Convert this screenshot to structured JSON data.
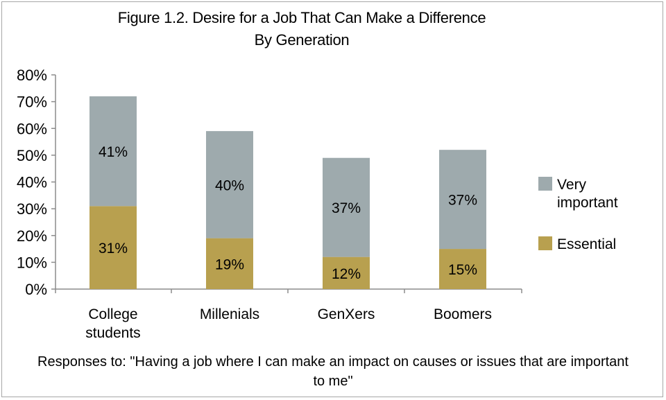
{
  "chart_data": {
    "type": "bar",
    "stacked": true,
    "title": [
      "Figure 1.2. Desire for a Job That Can Make a Difference",
      "By Generation"
    ],
    "categories": [
      [
        "College",
        "students"
      ],
      [
        "Millenials"
      ],
      [
        "GenXers"
      ],
      [
        "Boomers"
      ]
    ],
    "series": [
      {
        "name": "Essential",
        "color": "#b8a04f",
        "values": [
          31,
          19,
          12,
          15
        ],
        "labels": [
          "31%",
          "19%",
          "12%",
          "15%"
        ]
      },
      {
        "name": "Very important",
        "color": "#9eaaad",
        "values": [
          41,
          40,
          37,
          37
        ],
        "labels": [
          "41%",
          "40%",
          "37%",
          "37%"
        ]
      }
    ],
    "legend": [
      {
        "lines": [
          "Very",
          "important"
        ],
        "color": "#9eaaad"
      },
      {
        "lines": [
          "Essential"
        ],
        "color": "#b8a04f"
      }
    ],
    "legend_position": "right",
    "yticks": [
      "0%",
      "10%",
      "20%",
      "30%",
      "40%",
      "50%",
      "60%",
      "70%",
      "80%"
    ],
    "ylim": [
      0,
      80
    ],
    "grid": false,
    "footnote": [
      "Responses to: \"Having a job where I can make an impact on causes or issues that are important",
      "to me\""
    ]
  }
}
